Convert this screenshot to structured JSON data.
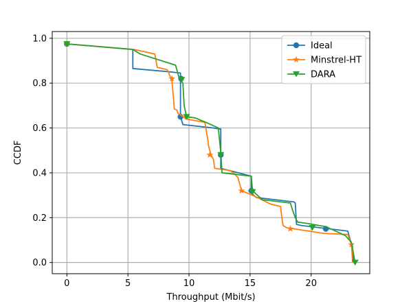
{
  "chart_data": {
    "type": "line",
    "xlabel": "Throughput (Mbit/s)",
    "ylabel": "CCDF",
    "xlim": [
      -1.2,
      24.8
    ],
    "ylim": [
      -0.05,
      1.03
    ],
    "xticks": [
      0,
      5,
      10,
      15,
      20
    ],
    "xtick_labels": [
      "0",
      "5",
      "10",
      "15",
      "20"
    ],
    "yticks": [
      0.0,
      0.2,
      0.4,
      0.6,
      0.8,
      1.0
    ],
    "ytick_labels": [
      "0.0",
      "0.2",
      "0.4",
      "0.6",
      "0.8",
      "1.0"
    ],
    "grid": true,
    "legend_position": "top-right",
    "series": [
      {
        "name": "Ideal",
        "color": "#1f77b4",
        "marker": "circle",
        "x": [
          0,
          5.4,
          5.4,
          8.5,
          9.3,
          9.3,
          9.5,
          12.0,
          12.6,
          12.6,
          15.1,
          15.1,
          15.5,
          18.6,
          18.7,
          18.8,
          19.2,
          21.5,
          23.0,
          23.3,
          23.5
        ],
        "y": [
          0.975,
          0.95,
          0.865,
          0.85,
          0.845,
          0.65,
          0.615,
          0.6,
          0.595,
          0.42,
          0.385,
          0.31,
          0.29,
          0.27,
          0.265,
          0.17,
          0.165,
          0.15,
          0.14,
          0.08,
          0.0
        ],
        "markers_x": [
          0,
          9.35,
          9.3,
          12.6,
          15.1,
          21.2
        ],
        "markers_y": [
          0.975,
          0.82,
          0.65,
          0.48,
          0.32,
          0.15
        ]
      },
      {
        "name": "Minstrel-HT",
        "color": "#ff7f0e",
        "marker": "star",
        "x": [
          0,
          5.5,
          7.2,
          7.4,
          8.2,
          8.3,
          8.6,
          8.7,
          8.8,
          9.0,
          9.1,
          9.8,
          11.3,
          11.5,
          11.6,
          11.8,
          12.0,
          12.1,
          13.4,
          14.0,
          14.3,
          15.2,
          16.7,
          17.5,
          17.6,
          17.7,
          18.0,
          21.0,
          23.0,
          23.3,
          23.4
        ],
        "y": [
          0.975,
          0.95,
          0.93,
          0.87,
          0.86,
          0.85,
          0.81,
          0.75,
          0.685,
          0.68,
          0.665,
          0.64,
          0.625,
          0.56,
          0.52,
          0.48,
          0.46,
          0.42,
          0.41,
          0.38,
          0.32,
          0.3,
          0.26,
          0.25,
          0.2,
          0.165,
          0.155,
          0.13,
          0.125,
          0.08,
          0.0
        ],
        "markers_x": [
          0,
          8.6,
          9.8,
          11.7,
          14.3,
          18.3,
          23.3
        ],
        "markers_y": [
          0.975,
          0.82,
          0.65,
          0.48,
          0.32,
          0.15,
          0.08
        ]
      },
      {
        "name": "DARA",
        "color": "#2ca02c",
        "marker": "triangle-down",
        "x": [
          0,
          5.4,
          6.0,
          8.9,
          9.2,
          9.5,
          9.6,
          9.8,
          10.5,
          11.6,
          12.4,
          12.6,
          12.7,
          15.1,
          15.2,
          16.0,
          18.3,
          18.5,
          18.7,
          18.9,
          19.6,
          21.2,
          22.8,
          23.3,
          23.6
        ],
        "y": [
          0.975,
          0.95,
          0.93,
          0.88,
          0.82,
          0.8,
          0.7,
          0.65,
          0.645,
          0.62,
          0.6,
          0.49,
          0.4,
          0.385,
          0.32,
          0.28,
          0.265,
          0.23,
          0.2,
          0.18,
          0.175,
          0.16,
          0.12,
          0.09,
          0.0
        ],
        "markers_x": [
          0,
          9.4,
          9.8,
          12.6,
          15.2,
          20.1,
          23.6
        ],
        "markers_y": [
          0.975,
          0.815,
          0.65,
          0.48,
          0.315,
          0.155,
          0.0
        ]
      }
    ]
  }
}
